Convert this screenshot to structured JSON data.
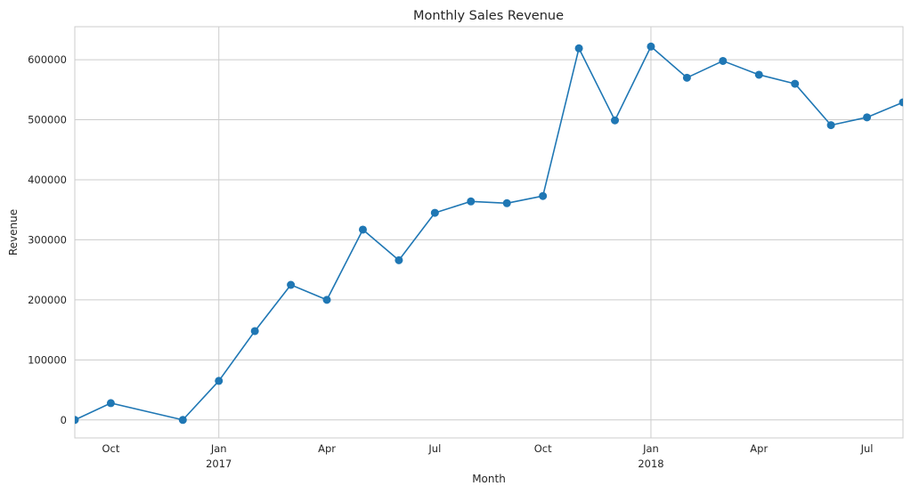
{
  "chart_data": {
    "type": "line",
    "title": "Monthly Sales Revenue",
    "xlabel": "Month",
    "ylabel": "Revenue",
    "x": [
      "2016-09",
      "2016-10",
      "2016-12",
      "2017-01",
      "2017-02",
      "2017-03",
      "2017-04",
      "2017-05",
      "2017-06",
      "2017-07",
      "2017-08",
      "2017-09",
      "2017-10",
      "2017-11",
      "2017-12",
      "2018-01",
      "2018-02",
      "2018-03",
      "2018-04",
      "2018-05",
      "2018-06",
      "2018-07",
      "2018-08"
    ],
    "series": [
      {
        "values": [
          0,
          28000,
          0,
          65000,
          148000,
          225000,
          200000,
          317000,
          266000,
          345000,
          364000,
          361000,
          373000,
          619000,
          499000,
          622000,
          570000,
          598000,
          575000,
          560000,
          491000,
          504000,
          529000
        ]
      }
    ],
    "xlim": [
      "2016-09",
      "2018-08"
    ],
    "ylim": [
      -30000,
      655000
    ],
    "x_ticks": [
      {
        "date": "2016-10",
        "label": "Oct",
        "sublabel": ""
      },
      {
        "date": "2017-01",
        "label": "Jan",
        "sublabel": "2017"
      },
      {
        "date": "2017-04",
        "label": "Apr",
        "sublabel": ""
      },
      {
        "date": "2017-07",
        "label": "Jul",
        "sublabel": ""
      },
      {
        "date": "2017-10",
        "label": "Oct",
        "sublabel": ""
      },
      {
        "date": "2018-01",
        "label": "Jan",
        "sublabel": "2018"
      },
      {
        "date": "2018-04",
        "label": "Apr",
        "sublabel": ""
      },
      {
        "date": "2018-07",
        "label": "Jul",
        "sublabel": ""
      }
    ],
    "y_ticks": [
      0,
      100000,
      200000,
      300000,
      400000,
      500000,
      600000
    ],
    "vertical_grid_dates": [
      "2017-01",
      "2018-01"
    ],
    "grid": true,
    "colors": {
      "line": "#1f77b4",
      "grid": "#cccccc",
      "frame": "#cccccc",
      "text": "#262626"
    }
  }
}
